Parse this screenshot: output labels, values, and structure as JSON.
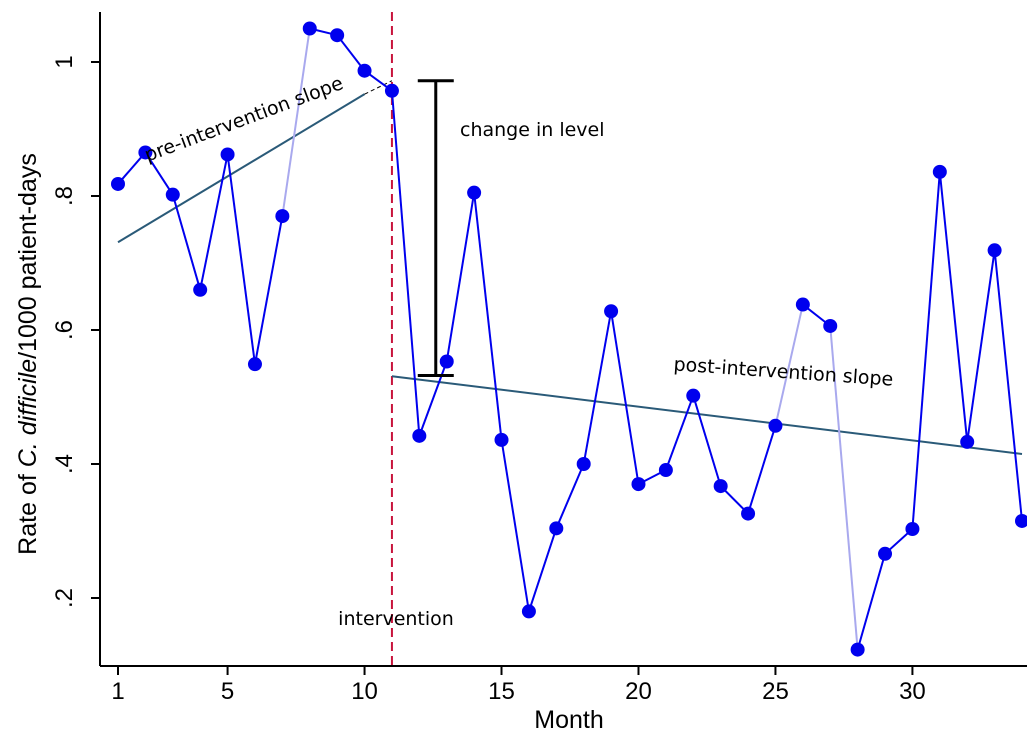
{
  "chart_data": {
    "type": "line",
    "ylabel_parts": [
      "Rate of ",
      "C. difficile",
      "/1000 patient-days"
    ],
    "xlabel": "Month",
    "x_ticks": [
      1,
      5,
      10,
      15,
      20,
      25,
      30
    ],
    "y_ticks": [
      0.2,
      0.4,
      0.6,
      0.8,
      1.0
    ],
    "y_tick_labels": [
      ".2",
      ".4",
      ".6",
      ".8",
      "1"
    ],
    "xlim": [
      0.4,
      34
    ],
    "ylim": [
      0.08,
      1.075
    ],
    "series": [
      {
        "x": [
          1,
          2,
          3,
          4,
          5,
          6,
          7,
          8,
          9,
          10,
          11,
          12,
          13,
          14,
          15,
          16,
          17,
          18,
          19,
          20,
          21,
          22,
          23,
          24,
          25,
          26,
          27,
          28,
          29,
          30,
          31,
          32,
          33,
          34
        ],
        "values": [
          0.818,
          0.865,
          0.802,
          0.66,
          0.862,
          0.549,
          0.77,
          1.05,
          1.04,
          0.987,
          0.957,
          0.442,
          0.553,
          0.805,
          0.436,
          0.18,
          0.304,
          0.4,
          0.628,
          0.37,
          0.391,
          0.502,
          0.367,
          0.326,
          0.457,
          0.638,
          0.606,
          0.123,
          0.266,
          0.303,
          0.836,
          0.433,
          0.719,
          0.315
        ],
        "color": "#0000ee",
        "missing_segments_color": "#a9a9ee"
      }
    ],
    "faint_segments": [
      [
        7,
        8
      ],
      [
        25,
        26
      ],
      [
        27,
        28
      ]
    ],
    "pre_slope": {
      "x": [
        1,
        10
      ],
      "y": [
        0.731,
        0.952
      ],
      "extension_y_at_11": 0.972
    },
    "post_slope": {
      "x": [
        11,
        34
      ],
      "y": [
        0.531,
        0.415
      ]
    },
    "trend_color": "#2a5a78",
    "intervention_x": 11,
    "intervention_color": "#c8143c",
    "change_in_level": {
      "x": 12.6,
      "y_top": 0.972,
      "y_bottom": 0.532
    },
    "annotations": {
      "pre": "pre-intervention slope",
      "post": "post-intervention slope",
      "change": "change in level",
      "intervention": "intervention"
    }
  }
}
